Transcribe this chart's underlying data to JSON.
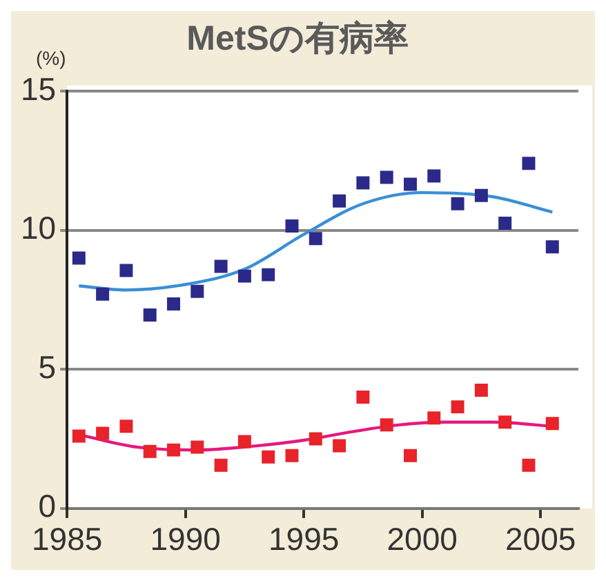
{
  "chart_data": {
    "type": "scatter",
    "title": "MetSの有病率",
    "ylabel": "(%)",
    "grid": "y",
    "legend": false,
    "xlim": [
      1985,
      2006.6
    ],
    "xticks": [
      1985,
      1990,
      1995,
      2000,
      2005
    ],
    "ylim": [
      0,
      15
    ],
    "yticks": [
      0,
      5,
      10,
      15
    ],
    "series": [
      {
        "marker": "square",
        "color": "#2b2a8a",
        "x": [
          1985.5,
          1986.5,
          1987.5,
          1988.5,
          1989.5,
          1990.5,
          1991.5,
          1992.5,
          1993.5,
          1994.5,
          1995.5,
          1996.5,
          1997.5,
          1998.5,
          1999.5,
          2000.5,
          2001.5,
          2002.5,
          2003.5,
          2004.5,
          2005.5
        ],
        "values": [
          9.0,
          7.7,
          8.55,
          6.95,
          7.35,
          7.8,
          8.7,
          8.35,
          8.4,
          10.15,
          9.7,
          11.05,
          11.7,
          11.9,
          11.65,
          11.95,
          10.95,
          11.25,
          10.25,
          12.4,
          9.4
        ]
      },
      {
        "type": "line",
        "marker": "none",
        "color": "#3a8fd6",
        "x": [
          1985.5,
          1987.5,
          1990,
          1992.5,
          1995,
          1997.5,
          2000,
          2003,
          2005.5
        ],
        "values": [
          8.0,
          7.85,
          8.05,
          8.6,
          9.85,
          10.95,
          11.35,
          11.2,
          10.65
        ]
      },
      {
        "marker": "square",
        "color": "#e8232a",
        "x": [
          1985.5,
          1986.5,
          1987.5,
          1988.5,
          1989.5,
          1990.5,
          1991.5,
          1992.5,
          1993.5,
          1994.5,
          1995.5,
          1996.5,
          1997.5,
          1998.5,
          1999.5,
          2000.5,
          2001.5,
          2002.5,
          2003.5,
          2004.5,
          2005.5
        ],
        "values": [
          2.6,
          2.7,
          2.95,
          2.05,
          2.1,
          2.2,
          1.55,
          2.4,
          1.85,
          1.9,
          2.5,
          2.25,
          4.0,
          3.0,
          1.9,
          3.25,
          3.65,
          4.25,
          3.1,
          1.55,
          3.05
        ]
      },
      {
        "type": "line",
        "marker": "none",
        "color": "#e5197f",
        "x": [
          1985.5,
          1988,
          1990.5,
          1993,
          1995,
          1997,
          1999,
          2001,
          2003,
          2005.5
        ],
        "values": [
          2.65,
          2.2,
          2.1,
          2.25,
          2.45,
          2.75,
          3.0,
          3.1,
          3.1,
          2.95
        ]
      }
    ]
  }
}
